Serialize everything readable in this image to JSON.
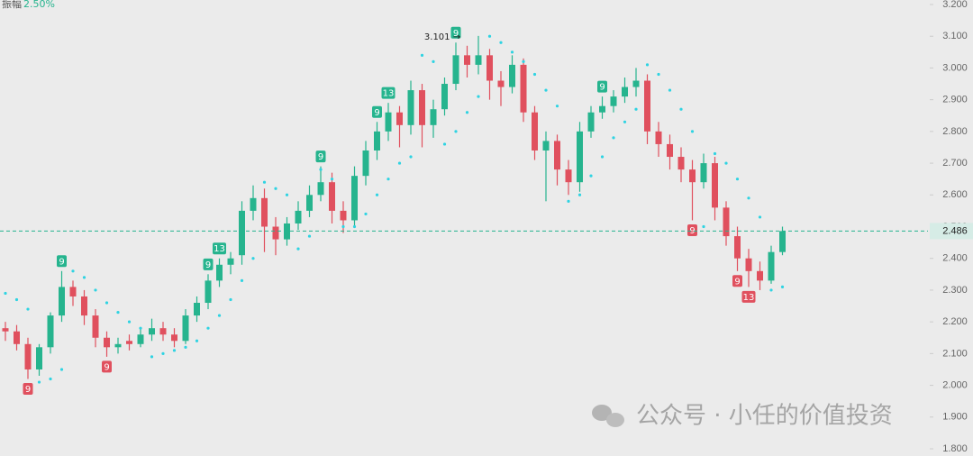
{
  "chart_data": {
    "type": "candlestick",
    "title": "振幅",
    "subtitle": "2.50%",
    "open": [
      2.18,
      2.17,
      2.13,
      2.05,
      2.12,
      2.22,
      2.31,
      2.28,
      2.22,
      2.15,
      2.12,
      2.14,
      2.13,
      2.16,
      2.18,
      2.16,
      2.14,
      2.22,
      2.26,
      2.33,
      2.38,
      2.41,
      2.55,
      2.59,
      2.5,
      2.46,
      2.51,
      2.55,
      2.6,
      2.64,
      2.55,
      2.52,
      2.66,
      2.74,
      2.8,
      2.86,
      2.82,
      2.93,
      2.82,
      2.87,
      2.95,
      3.04,
      3.01,
      3.04,
      2.96,
      2.94,
      3.01,
      2.86,
      2.74,
      2.77,
      2.68,
      2.64,
      2.8,
      2.86,
      2.88,
      2.91,
      2.94,
      2.96,
      2.8,
      2.76,
      2.72,
      2.68,
      2.64,
      2.7,
      2.56,
      2.47,
      2.4,
      2.36,
      2.33,
      2.42
    ],
    "high": [
      2.2,
      2.19,
      2.15,
      2.13,
      2.23,
      2.36,
      2.33,
      2.3,
      2.24,
      2.17,
      2.15,
      2.16,
      2.18,
      2.21,
      2.2,
      2.18,
      2.24,
      2.28,
      2.35,
      2.4,
      2.42,
      2.58,
      2.63,
      2.62,
      2.53,
      2.53,
      2.58,
      2.63,
      2.69,
      2.67,
      2.58,
      2.69,
      2.77,
      2.83,
      2.89,
      2.88,
      2.96,
      2.95,
      2.9,
      2.97,
      3.08,
      3.07,
      3.101,
      3.06,
      2.99,
      3.04,
      3.03,
      2.88,
      2.8,
      2.79,
      2.71,
      2.83,
      2.88,
      2.91,
      2.93,
      2.97,
      3.0,
      2.98,
      2.83,
      2.79,
      2.75,
      2.71,
      2.73,
      2.72,
      2.58,
      2.5,
      2.43,
      2.39,
      2.44,
      2.5
    ],
    "low": [
      2.14,
      2.11,
      2.02,
      2.03,
      2.1,
      2.2,
      2.25,
      2.19,
      2.12,
      2.09,
      2.1,
      2.11,
      2.12,
      2.14,
      2.14,
      2.12,
      2.13,
      2.2,
      2.24,
      2.31,
      2.35,
      2.38,
      2.52,
      2.42,
      2.41,
      2.44,
      2.49,
      2.53,
      2.58,
      2.51,
      2.48,
      2.5,
      2.63,
      2.71,
      2.77,
      2.75,
      2.79,
      2.75,
      2.78,
      2.85,
      2.93,
      2.97,
      2.98,
      2.9,
      2.88,
      2.92,
      2.83,
      2.71,
      2.58,
      2.63,
      2.6,
      2.61,
      2.78,
      2.84,
      2.86,
      2.89,
      2.91,
      2.76,
      2.72,
      2.68,
      2.64,
      2.52,
      2.62,
      2.52,
      2.44,
      2.36,
      2.31,
      2.3,
      2.32,
      2.41
    ],
    "close": [
      2.17,
      2.13,
      2.05,
      2.12,
      2.22,
      2.31,
      2.28,
      2.22,
      2.15,
      2.12,
      2.13,
      2.13,
      2.16,
      2.18,
      2.16,
      2.14,
      2.22,
      2.26,
      2.33,
      2.38,
      2.4,
      2.55,
      2.59,
      2.5,
      2.46,
      2.51,
      2.55,
      2.6,
      2.64,
      2.55,
      2.52,
      2.66,
      2.74,
      2.8,
      2.86,
      2.82,
      2.93,
      2.82,
      2.87,
      2.95,
      3.04,
      3.01,
      3.04,
      2.96,
      2.94,
      3.01,
      2.86,
      2.74,
      2.77,
      2.68,
      2.64,
      2.8,
      2.86,
      2.88,
      2.91,
      2.94,
      2.96,
      2.8,
      2.76,
      2.72,
      2.68,
      2.64,
      2.7,
      2.56,
      2.47,
      2.4,
      2.36,
      2.33,
      2.42,
      2.486
    ],
    "sar": [
      2.29,
      2.27,
      2.24,
      2.01,
      2.02,
      2.05,
      2.36,
      2.34,
      2.3,
      2.26,
      2.23,
      2.2,
      2.18,
      2.09,
      2.1,
      2.11,
      2.12,
      2.14,
      2.18,
      2.22,
      2.27,
      2.33,
      2.4,
      2.64,
      2.62,
      2.6,
      2.43,
      2.47,
      2.68,
      2.65,
      2.5,
      2.5,
      2.54,
      2.6,
      2.65,
      2.7,
      2.72,
      3.04,
      3.02,
      2.76,
      2.8,
      2.86,
      2.91,
      3.1,
      3.08,
      3.05,
      3.02,
      2.98,
      2.93,
      2.88,
      2.58,
      2.6,
      2.66,
      2.72,
      2.78,
      2.83,
      2.87,
      3.01,
      2.98,
      2.93,
      2.87,
      2.8,
      2.5,
      2.73,
      2.7,
      2.65,
      2.59,
      2.53,
      2.3,
      2.31
    ],
    "up_color": "#26b48e",
    "down_color": "#e0505e",
    "sar_color": "#2fd3e2",
    "markers": [
      {
        "index": 2,
        "label": "9",
        "side": "below"
      },
      {
        "index": 5,
        "label": "9",
        "side": "above"
      },
      {
        "index": 9,
        "label": "9",
        "side": "below"
      },
      {
        "index": 18,
        "label": "9",
        "side": "above"
      },
      {
        "index": 19,
        "label": "13",
        "side": "above"
      },
      {
        "index": 28,
        "label": "9",
        "side": "above"
      },
      {
        "index": 33,
        "label": "9",
        "side": "above"
      },
      {
        "index": 34,
        "label": "13",
        "side": "above"
      },
      {
        "index": 40,
        "label": "9",
        "side": "above"
      },
      {
        "index": 53,
        "label": "9",
        "side": "above"
      },
      {
        "index": 61,
        "label": "9",
        "side": "below"
      },
      {
        "index": 65,
        "label": "9",
        "side": "below"
      },
      {
        "index": 66,
        "label": "13",
        "side": "below"
      }
    ],
    "annotation": "3.101 →",
    "annotation_index": 42,
    "last_price": 2.486,
    "watermark": "公众号 · 小任的价值投资",
    "ylim": [
      1.8,
      3.2
    ],
    "yticks": [
      {
        "value": 3.2,
        "label": "3.200"
      },
      {
        "value": 3.1,
        "label": "3.100"
      },
      {
        "value": 3.0,
        "label": "3.000"
      },
      {
        "value": 2.9,
        "label": "2.900"
      },
      {
        "value": 2.8,
        "label": "2.800"
      },
      {
        "value": 2.7,
        "label": "2.700"
      },
      {
        "value": 2.6,
        "label": "2.600"
      },
      {
        "value": 2.5,
        "label": "2.500"
      },
      {
        "value": 2.4,
        "label": "2.400"
      },
      {
        "value": 2.3,
        "label": "2.300"
      },
      {
        "value": 2.2,
        "label": "2.200"
      },
      {
        "value": 2.1,
        "label": "2.100"
      },
      {
        "value": 2.0,
        "label": "2.000"
      },
      {
        "value": 1.9,
        "label": "1.900"
      },
      {
        "value": 1.8,
        "label": "1.800"
      }
    ]
  }
}
